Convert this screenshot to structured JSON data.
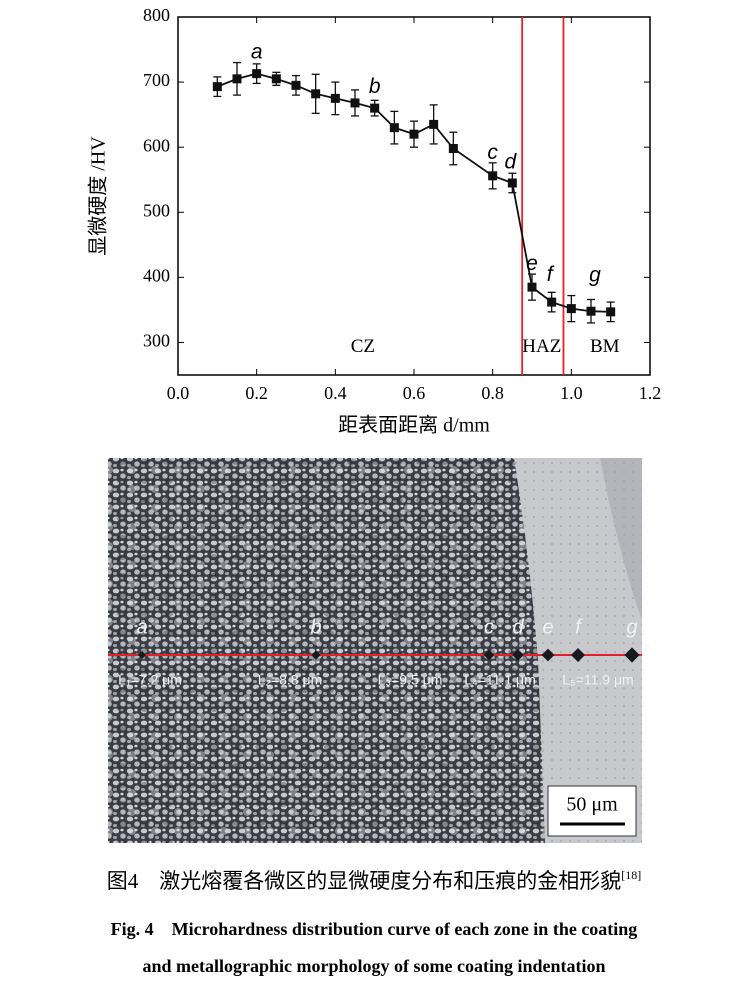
{
  "chart_data": {
    "type": "line",
    "y_label": "显微硬度 /HV",
    "x_label": "距表面距离 d/mm",
    "x": [
      0.1,
      0.15,
      0.2,
      0.25,
      0.3,
      0.35,
      0.4,
      0.45,
      0.5,
      0.55,
      0.6,
      0.65,
      0.7,
      0.8,
      0.85,
      0.9,
      0.95,
      1.0,
      1.05,
      1.1
    ],
    "series": [
      {
        "color": "#111111",
        "values": [
          693,
          705,
          713,
          705,
          695,
          682,
          675,
          668,
          660,
          630,
          620,
          635,
          598,
          556,
          545,
          385,
          362,
          352,
          348,
          347
        ],
        "errors": [
          15,
          25,
          15,
          10,
          15,
          30,
          25,
          20,
          12,
          25,
          20,
          30,
          25,
          20,
          15,
          20,
          15,
          20,
          18,
          15
        ]
      }
    ],
    "xlim": [
      0,
      1.2
    ],
    "ylim": [
      250,
      800
    ],
    "xticks": [
      {
        "value": 0,
        "label": "0.0"
      },
      0.2,
      0.4,
      0.6,
      0.8,
      {
        "value": 1,
        "label": "1.0"
      },
      1.2
    ],
    "yticks": [
      300,
      400,
      500,
      600,
      700,
      800
    ],
    "vlines": [
      0.875,
      0.98
    ],
    "vline_color": "#e8202a",
    "annotations": [
      {
        "text": "a",
        "x": 0.2,
        "y": 745
      },
      {
        "text": "b",
        "x": 0.5,
        "y": 692
      },
      {
        "text": "c",
        "x": 0.8,
        "y": 590
      },
      {
        "text": "d",
        "x": 0.845,
        "y": 576
      },
      {
        "text": "e",
        "x": 0.9,
        "y": 420
      },
      {
        "text": "f",
        "x": 0.945,
        "y": 403
      },
      {
        "text": "g",
        "x": 1.06,
        "y": 402
      },
      {
        "text": "CZ",
        "x": 0.47,
        "y": 292
      },
      {
        "text": "HAZ",
        "x": 0.925,
        "y": 292
      },
      {
        "text": "BM",
        "x": 1.085,
        "y": 292
      }
    ]
  },
  "micrograph": {
    "points": [
      "a",
      "b",
      "c",
      "d",
      "e",
      "f",
      "g"
    ],
    "lengths": [
      "L₁=7.2 μm",
      "L₂=8.8 μm",
      "L₃=9.5 μm",
      "L₄=11.1 μm",
      "L₅=11.9 μm"
    ],
    "scale_bar": "50 μm"
  },
  "caption": {
    "cn": "图4　激光熔覆各微区的显微硬度分布和压痕的金相形貌",
    "ref": "[18]",
    "en": [
      "Fig. 4　Microhardness distribution curve of each zone in the coating",
      "and metallographic morphology of some coating indentation"
    ]
  }
}
